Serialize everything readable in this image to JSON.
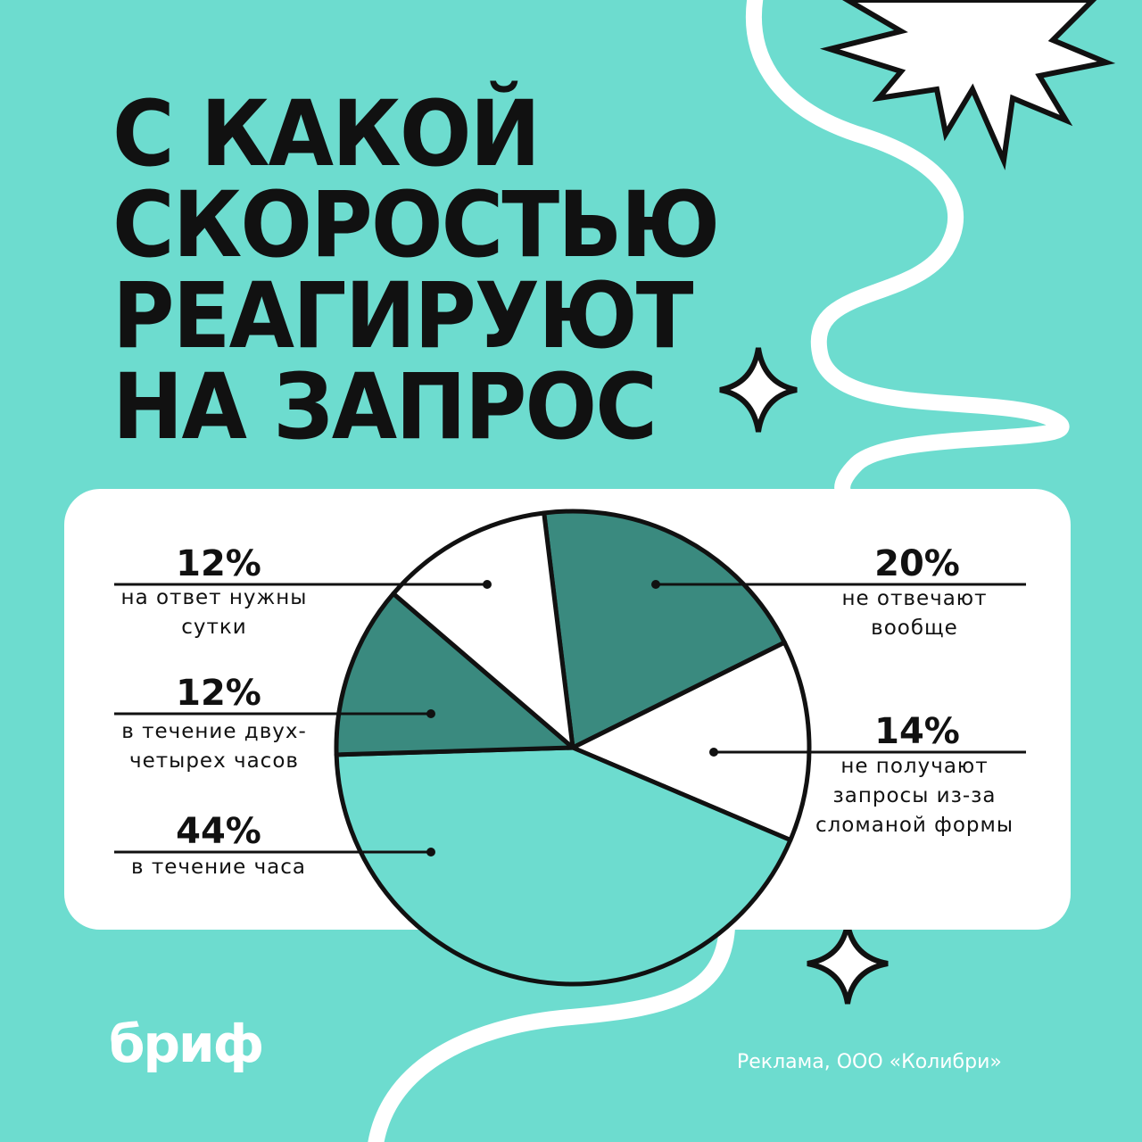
{
  "chart_data": {
    "type": "pie",
    "title": "С КАКОЙ\nСКОРОСТЬЮ\nРЕАГИРУЮТ\nНА ЗАПРОС",
    "categories": [
      "не отвечают вообще",
      "не получают запросы из-за сломаной формы",
      "в течение часа",
      "в течение двух-четырех часов",
      "на ответ нужны сутки"
    ],
    "values": [
      20,
      14,
      44,
      12,
      12
    ],
    "value_labels": [
      "20%",
      "14%",
      "44%",
      "12%",
      "12%"
    ],
    "colors": [
      "#3a8a7f",
      "#ffffff",
      "#6ddccf",
      "#3a8a7f",
      "#ffffff"
    ],
    "logo": "бриф",
    "footer": "Реклама, ООО «Колибри»"
  }
}
